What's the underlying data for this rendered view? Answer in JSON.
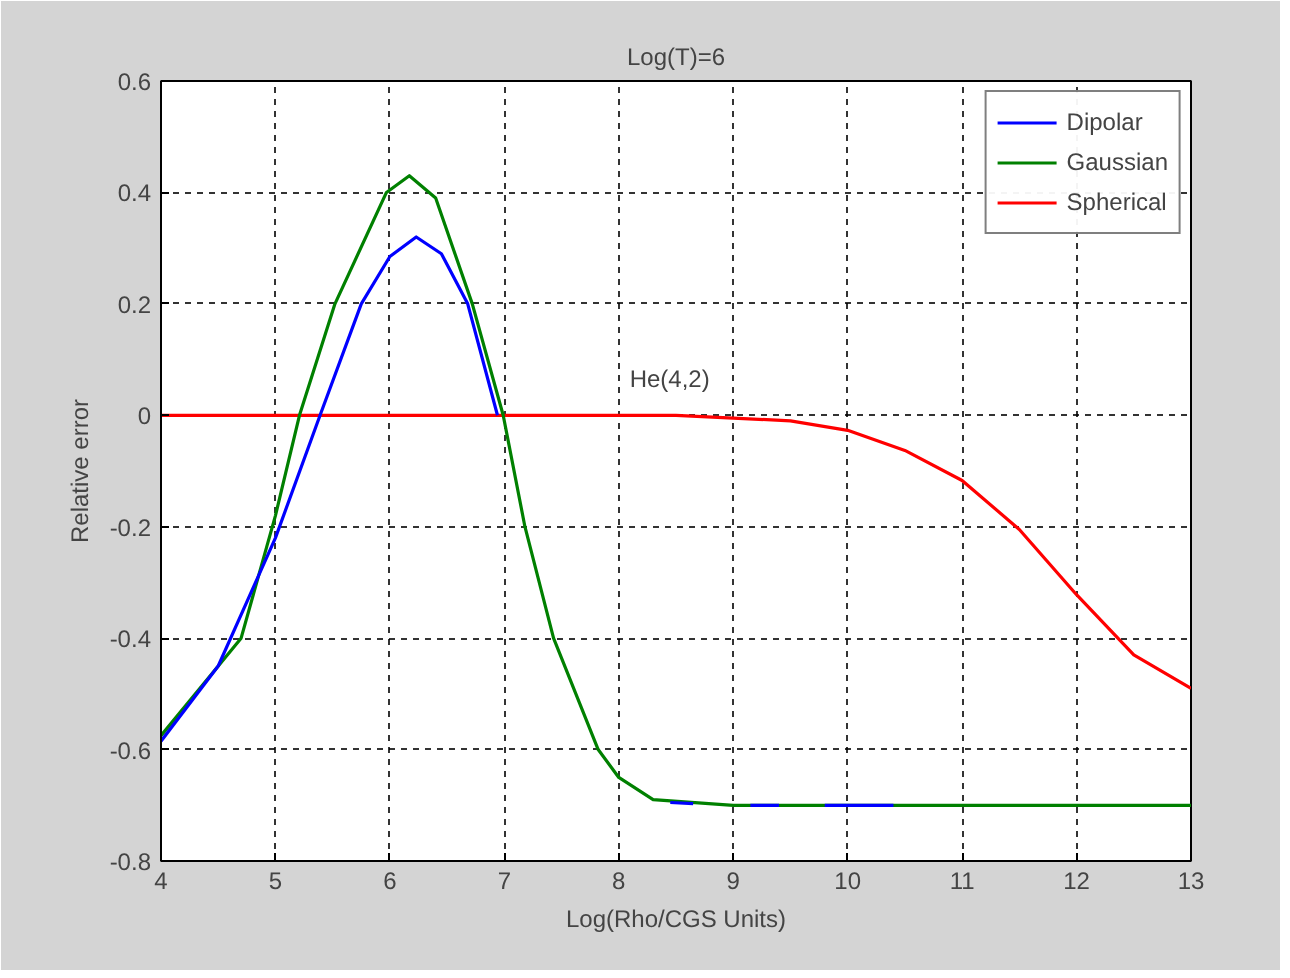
{
  "chart_data": {
    "type": "line",
    "title": "Log(T)=6",
    "xlabel": "Log(Rho/CGS Units)",
    "ylabel": "Relative error",
    "xlim": [
      4,
      13
    ],
    "ylim": [
      -0.8,
      0.6
    ],
    "xticks": [
      4,
      5,
      6,
      7,
      8,
      9,
      10,
      11,
      12,
      13
    ],
    "yticks": [
      -0.8,
      -0.6,
      -0.4,
      -0.2,
      0,
      0.2,
      0.4,
      0.6
    ],
    "grid": true,
    "legend": "top right",
    "line_style": "solid",
    "marker": "none",
    "annotations": [
      "He(4,2)"
    ],
    "series": [
      {
        "name": "Dipolar",
        "color": "#0000ff",
        "x": [
          4,
          4.5,
          5,
          5.39,
          5.75,
          6.0,
          6.23,
          6.45,
          6.68,
          6.94,
          7.2,
          8.45,
          8.65,
          8.8,
          9.15,
          9.4,
          9.6,
          9.8,
          10.4
        ],
        "values": [
          -0.585,
          -0.45,
          -0.22,
          0,
          0.2,
          0.285,
          0.32,
          0.29,
          0.2,
          0,
          null,
          -0.695,
          -0.697,
          null,
          -0.7,
          -0.7,
          null,
          -0.7,
          -0.7
        ]
      },
      {
        "name": "Gaussian",
        "color": "#008000",
        "x": [
          4,
          4.7,
          5,
          5.21,
          5.52,
          5.97,
          6.17,
          6.4,
          6.72,
          6.99,
          7.18,
          7.43,
          7.82,
          8.0,
          8.3,
          9.0,
          9.6,
          11,
          12,
          13
        ],
        "values": [
          -0.575,
          -0.4,
          -0.18,
          0,
          0.2,
          0.4,
          0.43,
          0.39,
          0.2,
          0,
          -0.2,
          -0.4,
          -0.6,
          -0.65,
          -0.69,
          -0.7,
          -0.7,
          -0.7,
          -0.7,
          -0.7
        ]
      },
      {
        "name": "Spherical",
        "color": "#ff0000",
        "x": [
          4,
          5,
          6,
          7,
          8,
          8.5,
          9,
          9.5,
          10,
          10.5,
          11,
          11.5,
          12,
          12.5,
          13
        ],
        "values": [
          0,
          0,
          0,
          0,
          0,
          0,
          -0.005,
          -0.01,
          -0.027,
          -0.063,
          -0.117,
          -0.205,
          -0.322,
          -0.43,
          -0.49
        ]
      }
    ]
  }
}
